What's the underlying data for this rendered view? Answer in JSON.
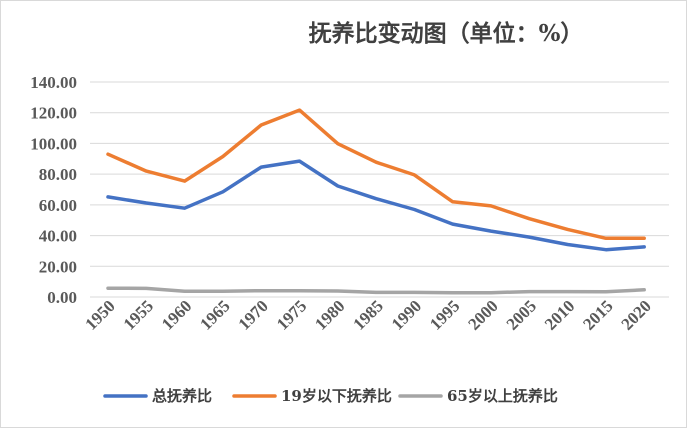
{
  "chart_data": {
    "type": "line",
    "title": "抚养比变动图（单位：%）",
    "xlabel": "",
    "ylabel": "",
    "categories": [
      "1950",
      "1955",
      "1960",
      "1965",
      "1970",
      "1975",
      "1980",
      "1985",
      "1990",
      "1995",
      "2000",
      "2005",
      "2010",
      "2015",
      "2020"
    ],
    "ylim": [
      0,
      140
    ],
    "yticks": [
      "0.00",
      "20.00",
      "40.00",
      "60.00",
      "80.00",
      "100.00",
      "120.00",
      "140.00"
    ],
    "grid": true,
    "legend_position": "bottom",
    "series": [
      {
        "name": "总抚养比",
        "color": "#4472c4",
        "values": [
          65.2,
          61.2,
          57.8,
          68.5,
          84.6,
          88.5,
          72.3,
          64.0,
          57.0,
          47.5,
          42.9,
          39.0,
          34.2,
          30.8,
          32.6
        ]
      },
      {
        "name": "19岁以下抚养比",
        "color": "#ed7d31",
        "values": [
          93.0,
          82.0,
          75.5,
          91.5,
          112.0,
          121.7,
          99.8,
          87.8,
          79.5,
          62.0,
          59.3,
          51.0,
          44.0,
          38.2,
          38.2
        ]
      },
      {
        "name": "65岁以上抚养比",
        "color": "#a5a5a5",
        "values": [
          5.7,
          5.6,
          3.8,
          3.8,
          4.1,
          4.1,
          3.9,
          3.0,
          3.0,
          2.8,
          2.8,
          3.5,
          3.5,
          3.4,
          4.7
        ]
      }
    ]
  }
}
